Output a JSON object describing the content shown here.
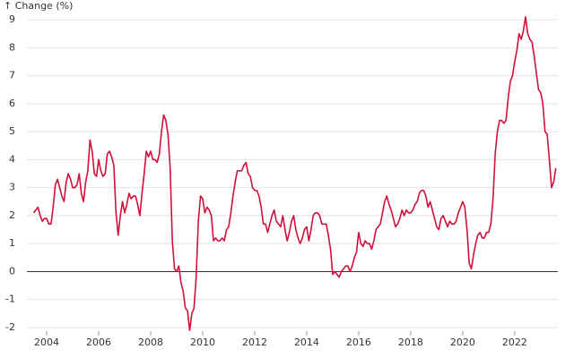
{
  "chart_data": {
    "type": "line",
    "y_label": "↑ Change (%)",
    "x": [
      2003.5,
      2003.583,
      2003.667,
      2003.75,
      2003.833,
      2003.917,
      2004,
      2004.083,
      2004.167,
      2004.25,
      2004.333,
      2004.417,
      2004.5,
      2004.583,
      2004.667,
      2004.75,
      2004.833,
      2004.917,
      2005,
      2005.083,
      2005.167,
      2005.25,
      2005.333,
      2005.417,
      2005.5,
      2005.583,
      2005.667,
      2005.75,
      2005.833,
      2005.917,
      2006,
      2006.083,
      2006.167,
      2006.25,
      2006.333,
      2006.417,
      2006.5,
      2006.583,
      2006.667,
      2006.75,
      2006.833,
      2006.917,
      2007,
      2007.083,
      2007.167,
      2007.25,
      2007.333,
      2007.417,
      2007.5,
      2007.583,
      2007.667,
      2007.75,
      2007.833,
      2007.917,
      2008,
      2008.083,
      2008.167,
      2008.25,
      2008.333,
      2008.417,
      2008.5,
      2008.583,
      2008.667,
      2008.75,
      2008.833,
      2008.917,
      2009,
      2009.083,
      2009.167,
      2009.25,
      2009.333,
      2009.417,
      2009.5,
      2009.583,
      2009.667,
      2009.75,
      2009.833,
      2009.917,
      2010,
      2010.083,
      2010.167,
      2010.25,
      2010.333,
      2010.417,
      2010.5,
      2010.583,
      2010.667,
      2010.75,
      2010.833,
      2010.917,
      2011,
      2011.083,
      2011.167,
      2011.25,
      2011.333,
      2011.417,
      2011.5,
      2011.583,
      2011.667,
      2011.75,
      2011.833,
      2011.917,
      2012,
      2012.083,
      2012.167,
      2012.25,
      2012.333,
      2012.417,
      2012.5,
      2012.583,
      2012.667,
      2012.75,
      2012.833,
      2012.917,
      2013,
      2013.083,
      2013.167,
      2013.25,
      2013.333,
      2013.417,
      2013.5,
      2013.583,
      2013.667,
      2013.75,
      2013.833,
      2013.917,
      2014,
      2014.083,
      2014.167,
      2014.25,
      2014.333,
      2014.417,
      2014.5,
      2014.583,
      2014.667,
      2014.75,
      2014.833,
      2014.917,
      2015,
      2015.083,
      2015.167,
      2015.25,
      2015.333,
      2015.417,
      2015.5,
      2015.583,
      2015.667,
      2015.75,
      2015.833,
      2015.917,
      2016,
      2016.083,
      2016.167,
      2016.25,
      2016.333,
      2016.417,
      2016.5,
      2016.583,
      2016.667,
      2016.75,
      2016.833,
      2016.917,
      2017,
      2017.083,
      2017.167,
      2017.25,
      2017.333,
      2017.417,
      2017.5,
      2017.583,
      2017.667,
      2017.75,
      2017.833,
      2017.917,
      2018,
      2018.083,
      2018.167,
      2018.25,
      2018.333,
      2018.417,
      2018.5,
      2018.583,
      2018.667,
      2018.75,
      2018.833,
      2018.917,
      2019,
      2019.083,
      2019.167,
      2019.25,
      2019.333,
      2019.417,
      2019.5,
      2019.583,
      2019.667,
      2019.75,
      2019.833,
      2019.917,
      2020,
      2020.083,
      2020.167,
      2020.25,
      2020.333,
      2020.417,
      2020.5,
      2020.583,
      2020.667,
      2020.75,
      2020.833,
      2020.917,
      2021,
      2021.083,
      2021.167,
      2021.25,
      2021.333,
      2021.417,
      2021.5,
      2021.583,
      2021.667,
      2021.75,
      2021.833,
      2021.917,
      2022,
      2022.083,
      2022.167,
      2022.25,
      2022.333,
      2022.417,
      2022.5,
      2022.583,
      2022.667,
      2022.75,
      2022.833,
      2022.917,
      2023,
      2023.083,
      2023.167,
      2023.25,
      2023.333,
      2023.417,
      2023.5,
      2023.583
    ],
    "series": [
      {
        "color": "#d0103a",
        "values": [
          2.1,
          2.2,
          2.3,
          2.0,
          1.8,
          1.9,
          1.9,
          1.7,
          1.7,
          2.3,
          3.1,
          3.3,
          3.0,
          2.7,
          2.5,
          3.2,
          3.5,
          3.3,
          3.0,
          3.0,
          3.1,
          3.5,
          2.8,
          2.5,
          3.2,
          3.6,
          4.7,
          4.3,
          3.5,
          3.4,
          4.0,
          3.6,
          3.4,
          3.5,
          4.2,
          4.3,
          4.1,
          3.8,
          2.1,
          1.3,
          2.0,
          2.5,
          2.1,
          2.4,
          2.8,
          2.6,
          2.7,
          2.7,
          2.4,
          2.0,
          2.8,
          3.5,
          4.3,
          4.1,
          4.3,
          4.0,
          4.0,
          3.9,
          4.2,
          5.0,
          5.6,
          5.4,
          4.9,
          3.7,
          1.1,
          0.1,
          0.0,
          0.2,
          -0.4,
          -0.7,
          -1.3,
          -1.4,
          -2.1,
          -1.5,
          -1.3,
          -0.2,
          1.8,
          2.7,
          2.6,
          2.1,
          2.3,
          2.2,
          2.0,
          1.1,
          1.2,
          1.1,
          1.1,
          1.2,
          1.1,
          1.5,
          1.6,
          2.1,
          2.7,
          3.2,
          3.6,
          3.6,
          3.6,
          3.8,
          3.9,
          3.5,
          3.4,
          3.0,
          2.9,
          2.9,
          2.7,
          2.3,
          1.7,
          1.7,
          1.4,
          1.7,
          2.0,
          2.2,
          1.8,
          1.7,
          1.6,
          2.0,
          1.5,
          1.1,
          1.4,
          1.8,
          2.0,
          1.5,
          1.2,
          1.0,
          1.2,
          1.5,
          1.6,
          1.1,
          1.5,
          2.0,
          2.1,
          2.1,
          2.0,
          1.7,
          1.7,
          1.7,
          1.3,
          0.8,
          -0.1,
          0.0,
          -0.1,
          -0.2,
          0.0,
          0.1,
          0.2,
          0.2,
          0.0,
          0.2,
          0.5,
          0.7,
          1.4,
          1.0,
          0.9,
          1.1,
          1.0,
          1.0,
          0.8,
          1.1,
          1.5,
          1.6,
          1.7,
          2.1,
          2.5,
          2.7,
          2.4,
          2.2,
          1.9,
          1.6,
          1.7,
          1.9,
          2.2,
          2.0,
          2.2,
          2.1,
          2.1,
          2.2,
          2.4,
          2.5,
          2.8,
          2.9,
          2.9,
          2.7,
          2.3,
          2.5,
          2.2,
          1.9,
          1.6,
          1.5,
          1.9,
          2.0,
          1.8,
          1.6,
          1.8,
          1.7,
          1.7,
          1.8,
          2.1,
          2.3,
          2.5,
          2.3,
          1.5,
          0.3,
          0.1,
          0.6,
          1.0,
          1.3,
          1.4,
          1.2,
          1.2,
          1.4,
          1.4,
          1.7,
          2.6,
          4.2,
          5.0,
          5.4,
          5.4,
          5.3,
          5.4,
          6.2,
          6.8,
          7.0,
          7.5,
          7.9,
          8.5,
          8.3,
          8.6,
          9.1,
          8.5,
          8.3,
          8.2,
          7.7,
          7.1,
          6.5,
          6.4,
          6.0,
          5.0,
          4.9,
          4.0,
          3.0,
          3.2,
          3.7
        ]
      }
    ],
    "xlim": [
      2003.24,
      2023.66
    ],
    "xticks": [
      2004,
      2006,
      2008,
      2010,
      2012,
      2014,
      2016,
      2018,
      2020,
      2022
    ],
    "ylim": [
      -2,
      9
    ],
    "yticks": [
      -2,
      -1,
      0,
      1,
      2,
      3,
      4,
      5,
      6,
      7,
      8,
      9
    ],
    "grid": true
  }
}
